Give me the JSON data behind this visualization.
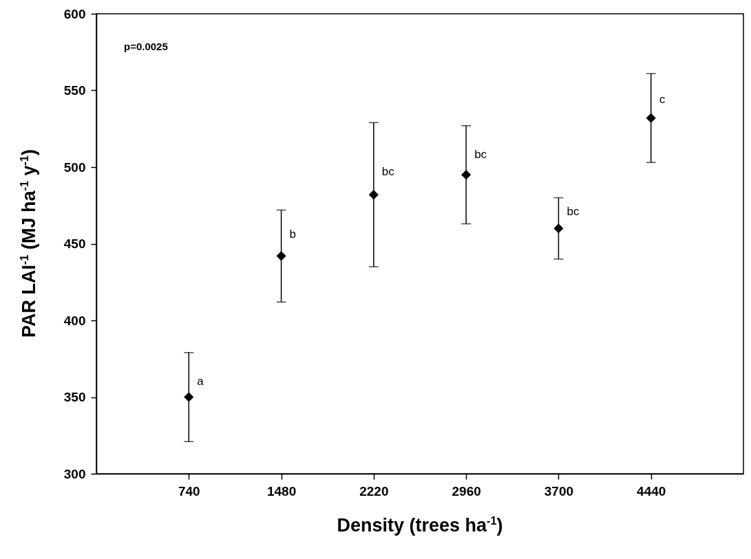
{
  "chart_data": {
    "type": "scatter",
    "xlabel": "Density (trees ha$^{-1}$)",
    "ylabel": "PAR LAI$^{-1}$ (MJ ha$^{-1}$ y$^{-1}$)",
    "x": [
      740,
      1480,
      2220,
      2960,
      3700,
      4440
    ],
    "series": [
      {
        "color": "#000000",
        "values": [
          350,
          442,
          482,
          495,
          460,
          532
        ],
        "errors": [
          29,
          30,
          47,
          32,
          20,
          29
        ]
      }
    ],
    "xlim": [
      0,
      5180
    ],
    "xticks": [
      740,
      1480,
      2220,
      2960,
      3700,
      4440
    ],
    "ylim": [
      300,
      600
    ],
    "yticks": [
      300,
      350,
      400,
      450,
      500,
      550,
      600
    ],
    "grid": false,
    "marker": "diamond",
    "annotations": [
      "p=0.0025",
      {
        "text": "a",
        "x": 740,
        "y": 360
      },
      {
        "text": "b",
        "x": 1480,
        "y": 456
      },
      {
        "text": "bc",
        "x": 2220,
        "y": 497
      },
      {
        "text": "bc",
        "x": 2960,
        "y": 508
      },
      {
        "text": "bc",
        "x": 3700,
        "y": 471
      },
      {
        "text": "c",
        "x": 4440,
        "y": 544
      }
    ]
  }
}
